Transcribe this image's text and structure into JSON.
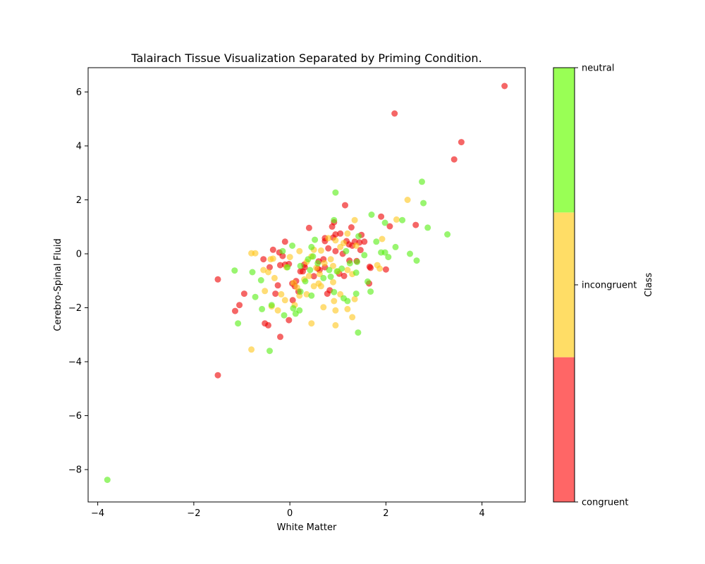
{
  "chart_data": {
    "type": "scatter",
    "title": "Talairach Tissue Visualization Separated by Priming Condition.",
    "xlabel": "White Matter",
    "ylabel": "Cerebro-Spinal Fluid",
    "xlim": [
      -4.2,
      4.9
    ],
    "ylim": [
      -9.2,
      6.9
    ],
    "xticks": [
      -4,
      -2,
      0,
      2,
      4
    ],
    "yticks": [
      -8,
      -6,
      -4,
      -2,
      0,
      2,
      4,
      6
    ],
    "grid": false,
    "colorbar": {
      "label": "Class",
      "classes": [
        "congruent",
        "incongruent",
        "neutral"
      ],
      "colors": [
        "#ff6666",
        "#ffdd66",
        "#99ff55"
      ]
    },
    "point_colors": {
      "congruent": "#ee0000",
      "incongruent": "#ffc61a",
      "neutral": "#55ee11"
    },
    "series": [
      {
        "name": "congruent",
        "points": [
          [
            4.47,
            6.22
          ],
          [
            2.18,
            5.2
          ],
          [
            3.57,
            4.14
          ],
          [
            3.42,
            3.5
          ],
          [
            1.15,
            1.8
          ],
          [
            2.62,
            1.07
          ],
          [
            1.9,
            1.38
          ],
          [
            2.08,
            1.02
          ],
          [
            0.92,
            1.17
          ],
          [
            0.88,
            1.01
          ],
          [
            0.4,
            0.96
          ],
          [
            1.28,
            0.98
          ],
          [
            1.05,
            0.75
          ],
          [
            0.95,
            0.72
          ],
          [
            1.49,
            0.7
          ],
          [
            0.73,
            0.58
          ],
          [
            0.73,
            0.47
          ],
          [
            1.18,
            0.47
          ],
          [
            1.35,
            0.45
          ],
          [
            1.45,
            0.42
          ],
          [
            1.23,
            0.35
          ],
          [
            1.3,
            0.3
          ],
          [
            0.8,
            0.2
          ],
          [
            1.47,
            0.14
          ],
          [
            0.95,
            0.1
          ],
          [
            1.1,
            0.0
          ],
          [
            -0.35,
            0.15
          ],
          [
            -0.22,
            0.05
          ],
          [
            -0.15,
            -0.08
          ],
          [
            -0.55,
            -0.2
          ],
          [
            -0.1,
            0.45
          ],
          [
            0.6,
            -0.28
          ],
          [
            1.24,
            -0.25
          ],
          [
            1.39,
            -0.27
          ],
          [
            1.66,
            -0.48
          ],
          [
            1.68,
            -0.52
          ],
          [
            2.0,
            -0.58
          ],
          [
            0.3,
            -0.4
          ],
          [
            0.62,
            -0.6
          ],
          [
            0.73,
            -0.5
          ],
          [
            0.31,
            -0.5
          ],
          [
            0.22,
            -0.65
          ],
          [
            0.27,
            -0.65
          ],
          [
            0.5,
            -0.83
          ],
          [
            1.03,
            -0.74
          ],
          [
            1.13,
            -0.82
          ],
          [
            1.65,
            -1.1
          ],
          [
            0.13,
            -1.01
          ],
          [
            0.1,
            -1.2
          ],
          [
            -0.25,
            -1.17
          ],
          [
            -0.3,
            -1.48
          ],
          [
            0.05,
            -1.1
          ],
          [
            -0.1,
            -0.4
          ],
          [
            -0.2,
            -0.42
          ],
          [
            -0.02,
            -0.38
          ],
          [
            -0.42,
            -0.5
          ],
          [
            0.83,
            -1.35
          ],
          [
            0.78,
            -1.48
          ],
          [
            0.18,
            -1.4
          ],
          [
            0.06,
            -1.72
          ],
          [
            -0.95,
            -1.48
          ],
          [
            -1.05,
            -1.9
          ],
          [
            -1.14,
            -2.12
          ],
          [
            -0.52,
            -2.58
          ],
          [
            -0.45,
            -2.65
          ],
          [
            -0.02,
            -2.46
          ],
          [
            -0.2,
            -3.08
          ],
          [
            -1.5,
            -0.95
          ],
          [
            -1.5,
            -4.5
          ],
          [
            0.58,
            -0.55
          ],
          [
            0.9,
            0.6
          ],
          [
            1.55,
            0.45
          ],
          [
            0.7,
            -0.2
          ]
        ]
      },
      {
        "name": "incongruent",
        "points": [
          [
            2.45,
            2.0
          ],
          [
            1.35,
            1.25
          ],
          [
            2.22,
            1.27
          ],
          [
            1.2,
            0.75
          ],
          [
            0.8,
            0.58
          ],
          [
            0.95,
            0.5
          ],
          [
            1.05,
            0.25
          ],
          [
            1.38,
            0.3
          ],
          [
            1.12,
            0.4
          ],
          [
            1.92,
            0.55
          ],
          [
            -0.8,
            0.02
          ],
          [
            -0.72,
            0.02
          ],
          [
            -0.4,
            -0.2
          ],
          [
            -0.35,
            -0.18
          ],
          [
            -0.55,
            -0.6
          ],
          [
            -0.45,
            -0.68
          ],
          [
            -0.32,
            -0.9
          ],
          [
            -0.07,
            -0.5
          ],
          [
            0.0,
            -0.12
          ],
          [
            0.2,
            0.1
          ],
          [
            0.35,
            -0.3
          ],
          [
            0.45,
            -0.1
          ],
          [
            0.5,
            0.15
          ],
          [
            0.65,
            0.12
          ],
          [
            0.72,
            -0.35
          ],
          [
            0.85,
            -0.2
          ],
          [
            0.9,
            -0.45
          ],
          [
            1.0,
            -0.65
          ],
          [
            1.2,
            -0.6
          ],
          [
            1.3,
            -0.75
          ],
          [
            1.82,
            -0.42
          ],
          [
            1.87,
            -0.55
          ],
          [
            0.15,
            -1.25
          ],
          [
            0.2,
            -1.55
          ],
          [
            0.35,
            -1.5
          ],
          [
            0.5,
            -1.2
          ],
          [
            0.6,
            -1.1
          ],
          [
            0.65,
            -1.2
          ],
          [
            0.9,
            -1.05
          ],
          [
            1.05,
            -1.5
          ],
          [
            1.2,
            -2.05
          ],
          [
            1.3,
            -2.35
          ],
          [
            1.35,
            -1.68
          ],
          [
            0.92,
            -1.75
          ],
          [
            0.95,
            -2.1
          ],
          [
            0.95,
            -2.65
          ],
          [
            0.7,
            -1.98
          ],
          [
            0.45,
            -2.58
          ],
          [
            0.1,
            -1.9
          ],
          [
            -0.1,
            -1.72
          ],
          [
            -0.18,
            -1.5
          ],
          [
            -0.25,
            -2.1
          ],
          [
            -0.38,
            -1.95
          ],
          [
            -0.52,
            -1.38
          ],
          [
            -0.8,
            -3.55
          ],
          [
            0.55,
            -0.52
          ],
          [
            0.4,
            -0.82
          ],
          [
            0.62,
            -0.75
          ],
          [
            0.08,
            -1.08
          ],
          [
            0.3,
            -0.95
          ]
        ]
      },
      {
        "name": "neutral",
        "points": [
          [
            2.75,
            2.67
          ],
          [
            0.95,
            2.27
          ],
          [
            2.78,
            1.88
          ],
          [
            1.7,
            1.45
          ],
          [
            0.92,
            1.25
          ],
          [
            1.43,
            0.65
          ],
          [
            2.87,
            0.97
          ],
          [
            3.28,
            0.72
          ],
          [
            2.34,
            1.25
          ],
          [
            1.98,
            1.15
          ],
          [
            1.8,
            0.45
          ],
          [
            2.2,
            0.25
          ],
          [
            1.9,
            0.05
          ],
          [
            1.98,
            0.05
          ],
          [
            2.5,
            0.0
          ],
          [
            2.05,
            -0.12
          ],
          [
            2.64,
            -0.25
          ],
          [
            1.55,
            -0.05
          ],
          [
            1.17,
            0.1
          ],
          [
            1.4,
            -0.3
          ],
          [
            0.52,
            0.52
          ],
          [
            0.45,
            0.25
          ],
          [
            0.05,
            0.3
          ],
          [
            -0.15,
            0.1
          ],
          [
            -0.05,
            -0.5
          ],
          [
            0.22,
            -0.45
          ],
          [
            0.38,
            -0.2
          ],
          [
            0.48,
            -0.1
          ],
          [
            0.58,
            -0.35
          ],
          [
            0.82,
            -0.6
          ],
          [
            0.98,
            -0.65
          ],
          [
            1.08,
            -0.55
          ],
          [
            1.38,
            -0.7
          ],
          [
            1.62,
            -1.03
          ],
          [
            1.68,
            -1.4
          ],
          [
            1.38,
            -1.48
          ],
          [
            1.2,
            -1.75
          ],
          [
            1.12,
            -1.65
          ],
          [
            0.92,
            -1.42
          ],
          [
            0.45,
            -1.55
          ],
          [
            0.32,
            -1.02
          ],
          [
            0.22,
            -1.4
          ],
          [
            0.2,
            -2.1
          ],
          [
            0.12,
            -2.22
          ],
          [
            0.07,
            -2.02
          ],
          [
            -0.12,
            -2.28
          ],
          [
            -0.38,
            -1.9
          ],
          [
            -0.58,
            -2.05
          ],
          [
            -0.72,
            -1.6
          ],
          [
            -0.6,
            -0.98
          ],
          [
            -1.15,
            -0.62
          ],
          [
            -0.78,
            -0.68
          ],
          [
            -1.08,
            -2.58
          ],
          [
            -0.42,
            -3.6
          ],
          [
            1.42,
            -2.92
          ],
          [
            -3.8,
            -8.38
          ],
          [
            0.7,
            -0.9
          ],
          [
            0.42,
            -0.6
          ],
          [
            0.85,
            -0.85
          ],
          [
            1.25,
            -0.35
          ]
        ]
      }
    ]
  }
}
